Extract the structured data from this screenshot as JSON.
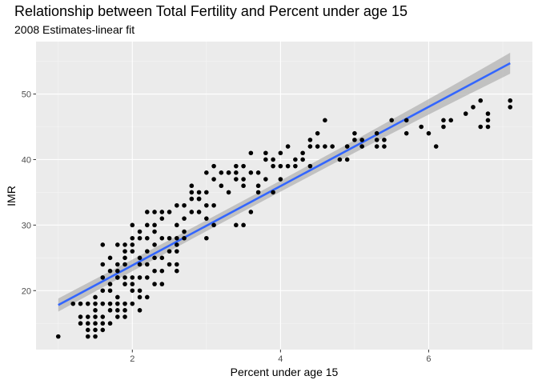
{
  "chart_data": {
    "type": "scatter",
    "title": "Relationship between Total Fertility and Percent under age 15",
    "subtitle": "2008 Estimates-linear fit",
    "xlabel": "Percent under age 15",
    "ylabel": "IMR",
    "xlim": [
      0.7,
      7.4
    ],
    "ylim": [
      11.0,
      58.0
    ],
    "x_ticks": [
      2,
      4,
      6
    ],
    "y_ticks": [
      20,
      30,
      40,
      50
    ],
    "grid": true,
    "legend": "none",
    "colors": {
      "panel": "#ebebeb",
      "grid_major": "#ffffff",
      "point": "#000000",
      "fit_line": "#3366ff",
      "band": "#b3b3b3"
    },
    "fit": {
      "method": "linear",
      "x": [
        1.0,
        7.1
      ],
      "y": [
        17.8,
        54.7
      ],
      "se_lower": [
        16.8,
        53.1
      ],
      "se_upper": [
        18.8,
        56.3
      ]
    },
    "points": [
      [
        1.0,
        13
      ],
      [
        1.2,
        18
      ],
      [
        1.3,
        18
      ],
      [
        1.3,
        16
      ],
      [
        1.3,
        15
      ],
      [
        1.4,
        18
      ],
      [
        1.4,
        16
      ],
      [
        1.4,
        15
      ],
      [
        1.4,
        14
      ],
      [
        1.4,
        13
      ],
      [
        1.5,
        19
      ],
      [
        1.5,
        18
      ],
      [
        1.5,
        17
      ],
      [
        1.5,
        16
      ],
      [
        1.5,
        15
      ],
      [
        1.5,
        14
      ],
      [
        1.5,
        13
      ],
      [
        1.6,
        20
      ],
      [
        1.6,
        18
      ],
      [
        1.6,
        16
      ],
      [
        1.6,
        15
      ],
      [
        1.6,
        14
      ],
      [
        1.7,
        20
      ],
      [
        1.7,
        18
      ],
      [
        1.7,
        17
      ],
      [
        1.7,
        15
      ],
      [
        1.8,
        22
      ],
      [
        1.8,
        19
      ],
      [
        1.8,
        18
      ],
      [
        1.8,
        17
      ],
      [
        1.8,
        16
      ],
      [
        1.9,
        24
      ],
      [
        1.9,
        22
      ],
      [
        1.9,
        21
      ],
      [
        1.9,
        18
      ],
      [
        1.9,
        17
      ],
      [
        1.9,
        16
      ],
      [
        1.8,
        27
      ],
      [
        1.8,
        24
      ],
      [
        1.8,
        23
      ],
      [
        1.8,
        22
      ],
      [
        1.9,
        27
      ],
      [
        1.9,
        26
      ],
      [
        1.9,
        25
      ],
      [
        1.7,
        21
      ],
      [
        1.7,
        23
      ],
      [
        2.0,
        28
      ],
      [
        2.0,
        27
      ],
      [
        2.0,
        26
      ],
      [
        2.0,
        22
      ],
      [
        2.0,
        21
      ],
      [
        2.0,
        20
      ],
      [
        2.0,
        18
      ],
      [
        2.1,
        28
      ],
      [
        2.1,
        25
      ],
      [
        2.1,
        24
      ],
      [
        2.1,
        22
      ],
      [
        2.1,
        20
      ],
      [
        2.1,
        19
      ],
      [
        2.1,
        17
      ],
      [
        2.2,
        30
      ],
      [
        2.2,
        28
      ],
      [
        2.2,
        26
      ],
      [
        2.2,
        24
      ],
      [
        2.2,
        22
      ],
      [
        2.2,
        19
      ],
      [
        2.3,
        30
      ],
      [
        2.3,
        29
      ],
      [
        2.3,
        27
      ],
      [
        2.3,
        25
      ],
      [
        2.3,
        23
      ],
      [
        2.3,
        21
      ],
      [
        2.4,
        31
      ],
      [
        2.4,
        28
      ],
      [
        2.4,
        25
      ],
      [
        2.4,
        23
      ],
      [
        2.4,
        21
      ],
      [
        2.5,
        28
      ],
      [
        2.5,
        26
      ],
      [
        2.5,
        24
      ],
      [
        2.4,
        32
      ],
      [
        2.5,
        32
      ],
      [
        2.6,
        33
      ],
      [
        2.6,
        30
      ],
      [
        2.6,
        28
      ],
      [
        2.6,
        27
      ],
      [
        2.6,
        26
      ],
      [
        2.7,
        33
      ],
      [
        2.7,
        31
      ],
      [
        2.7,
        29
      ],
      [
        2.7,
        28
      ],
      [
        2.8,
        35
      ],
      [
        2.8,
        34
      ],
      [
        2.8,
        32
      ],
      [
        2.9,
        35
      ],
      [
        2.9,
        34
      ],
      [
        2.9,
        32
      ],
      [
        3.0,
        38
      ],
      [
        3.0,
        35
      ],
      [
        3.0,
        33
      ],
      [
        3.0,
        31
      ],
      [
        3.0,
        28
      ],
      [
        3.1,
        39
      ],
      [
        3.1,
        37
      ],
      [
        3.1,
        33
      ],
      [
        3.1,
        30
      ],
      [
        3.2,
        36
      ],
      [
        3.3,
        38
      ],
      [
        3.3,
        35
      ],
      [
        3.4,
        39
      ],
      [
        3.4,
        38
      ],
      [
        3.4,
        37
      ],
      [
        3.4,
        30
      ],
      [
        3.5,
        39
      ],
      [
        3.5,
        37
      ],
      [
        3.5,
        36
      ],
      [
        3.6,
        41
      ],
      [
        3.6,
        38
      ],
      [
        3.6,
        32
      ],
      [
        3.7,
        38
      ],
      [
        3.7,
        36
      ],
      [
        3.7,
        35
      ],
      [
        3.8,
        41
      ],
      [
        3.8,
        40
      ],
      [
        3.8,
        37
      ],
      [
        3.9,
        40
      ],
      [
        3.9,
        39
      ],
      [
        3.9,
        35
      ],
      [
        4.0,
        41
      ],
      [
        4.0,
        39
      ],
      [
        4.0,
        37
      ],
      [
        4.1,
        42
      ],
      [
        4.1,
        39
      ],
      [
        4.2,
        40
      ],
      [
        4.2,
        39
      ],
      [
        4.3,
        41
      ],
      [
        4.3,
        40
      ],
      [
        4.4,
        43
      ],
      [
        4.4,
        42
      ],
      [
        4.4,
        39
      ],
      [
        4.5,
        44
      ],
      [
        4.5,
        42
      ],
      [
        4.6,
        46
      ],
      [
        4.6,
        42
      ],
      [
        4.7,
        42
      ],
      [
        4.8,
        40
      ],
      [
        4.9,
        42
      ],
      [
        4.9,
        40
      ],
      [
        5.0,
        44
      ],
      [
        5.0,
        43
      ],
      [
        5.1,
        43
      ],
      [
        5.1,
        42
      ],
      [
        5.3,
        44
      ],
      [
        5.3,
        43
      ],
      [
        5.3,
        42
      ],
      [
        5.4,
        43
      ],
      [
        5.4,
        42
      ],
      [
        5.5,
        46
      ],
      [
        5.7,
        46
      ],
      [
        5.7,
        44
      ],
      [
        5.9,
        45
      ],
      [
        6.0,
        44
      ],
      [
        6.1,
        42
      ],
      [
        6.2,
        46
      ],
      [
        6.2,
        45
      ],
      [
        6.3,
        46
      ],
      [
        6.5,
        47
      ],
      [
        6.6,
        48
      ],
      [
        6.7,
        49
      ],
      [
        6.7,
        45
      ],
      [
        6.8,
        47
      ],
      [
        6.8,
        46
      ],
      [
        6.8,
        45
      ],
      [
        7.1,
        49
      ],
      [
        7.1,
        48
      ],
      [
        1.6,
        27
      ],
      [
        1.6,
        24
      ],
      [
        1.6,
        22
      ],
      [
        1.7,
        25
      ],
      [
        2.0,
        30
      ],
      [
        2.1,
        29
      ],
      [
        2.2,
        32
      ],
      [
        2.3,
        32
      ],
      [
        2.6,
        24
      ],
      [
        2.6,
        23
      ],
      [
        3.5,
        30
      ],
      [
        2.8,
        36
      ],
      [
        2.9,
        34
      ],
      [
        3.2,
        38
      ],
      [
        3.3,
        38
      ]
    ]
  }
}
